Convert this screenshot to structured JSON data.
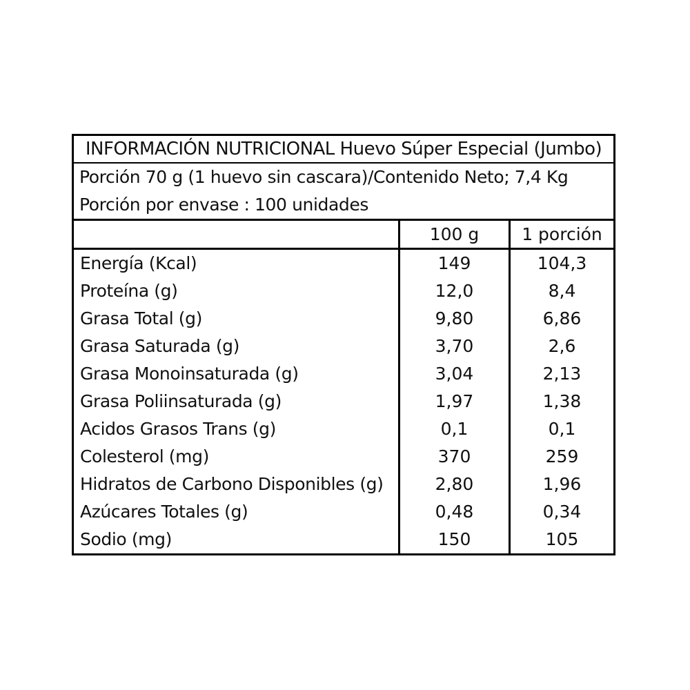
{
  "label": {
    "title": "INFORMACIÓN NUTRICIONAL Huevo Súper Especial (Jumbo)",
    "serving_line_1": "Porción 70 g (1 huevo sin cascara)/Contenido Neto; 7,4 Kg",
    "serving_line_2": "Porción por envase : 100 unidades",
    "columns": {
      "nutrient": "",
      "per_100g": "100 g",
      "per_portion": "1 porción"
    },
    "rows": [
      {
        "label": "Energía (Kcal)",
        "per_100g": "149",
        "per_portion": "104,3"
      },
      {
        "label": "Proteína (g)",
        "per_100g": "12,0",
        "per_portion": "8,4"
      },
      {
        "label": "Grasa Total (g)",
        "per_100g": "9,80",
        "per_portion": "6,86"
      },
      {
        "label": "Grasa Saturada (g)",
        "per_100g": "3,70",
        "per_portion": "2,6"
      },
      {
        "label": "Grasa Monoinsaturada (g)",
        "per_100g": "3,04",
        "per_portion": "2,13"
      },
      {
        "label": "Grasa Poliinsaturada (g)",
        "per_100g": "1,97",
        "per_portion": "1,38"
      },
      {
        "label": "Acidos Grasos Trans (g)",
        "per_100g": "0,1",
        "per_portion": "0,1"
      },
      {
        "label": "Colesterol (mg)",
        "per_100g": "370",
        "per_portion": "259"
      },
      {
        "label": "Hidratos de Carbono Disponibles (g)",
        "per_100g": "2,80",
        "per_portion": "1,96"
      },
      {
        "label": "Azúcares Totales (g)",
        "per_100g": "0,48",
        "per_portion": "0,34"
      },
      {
        "label": "Sodio (mg)",
        "per_100g": "150",
        "per_portion": "105"
      }
    ],
    "colors": {
      "border": "#000000",
      "text": "#111111",
      "background": "#ffffff"
    }
  }
}
